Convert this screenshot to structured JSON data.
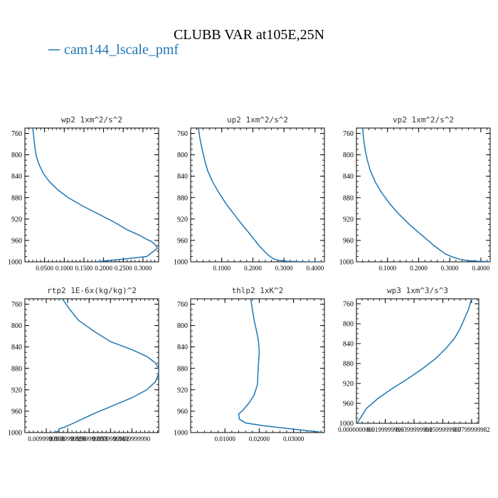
{
  "figure": {
    "title": "CLUBB VAR at105E,25N",
    "legend_label": "cam144_lscale_pmf",
    "line_color": "#1f77b4"
  },
  "chart_data": [
    {
      "type": "line",
      "title": "wp2  1xm^2/s^2",
      "xlim": [
        0.0,
        0.34
      ],
      "ylim": [
        1000,
        750
      ],
      "yticks": [
        760,
        800,
        840,
        880,
        920,
        960,
        1000
      ],
      "xticks": [
        0.05,
        0.1,
        0.15,
        0.2,
        0.25,
        0.3
      ],
      "xtick_labels": [
        "0.0500",
        "0.1000",
        "0.1500",
        "0.2000",
        "0.2500",
        "0.3000"
      ],
      "series": [
        {
          "x": [
            0.02,
            0.023,
            0.026,
            0.03,
            0.037,
            0.047,
            0.062,
            0.083,
            0.11,
            0.145,
            0.185,
            0.225,
            0.26,
            0.29,
            0.31,
            0.322,
            0.328,
            0.334,
            0.336,
            0.31,
            0.25,
            0.18
          ],
          "y": [
            750,
            770,
            790,
            805,
            820,
            835,
            850,
            865,
            880,
            895,
            910,
            925,
            940,
            950,
            958,
            962,
            966,
            970,
            975,
            990,
            995,
            1000
          ]
        }
      ]
    },
    {
      "type": "line",
      "title": "up2  1xm^2/s^2",
      "xlim": [
        0.0,
        0.43
      ],
      "ylim": [
        1000,
        750
      ],
      "yticks": [
        760,
        800,
        840,
        880,
        920,
        960,
        1000
      ],
      "xticks": [
        0.1,
        0.2,
        0.3,
        0.4
      ],
      "xtick_labels": [
        "0.1000",
        "0.2000",
        "0.3000",
        "0.4000"
      ],
      "series": [
        {
          "x": [
            0.025,
            0.03,
            0.037,
            0.045,
            0.055,
            0.07,
            0.09,
            0.112,
            0.138,
            0.165,
            0.193,
            0.22,
            0.24,
            0.255,
            0.268,
            0.28,
            0.31,
            0.37,
            0.43
          ],
          "y": [
            750,
            770,
            790,
            810,
            830,
            850,
            870,
            890,
            910,
            930,
            950,
            970,
            982,
            990,
            995,
            997,
            999,
            1000,
            1000
          ]
        }
      ]
    },
    {
      "type": "line",
      "title": "vp2  1xm^2/s^2",
      "xlim": [
        0.0,
        0.43
      ],
      "ylim": [
        1000,
        750
      ],
      "yticks": [
        760,
        800,
        840,
        880,
        920,
        960,
        1000
      ],
      "xticks": [
        0.1,
        0.2,
        0.3,
        0.4
      ],
      "xtick_labels": [
        "0.1000",
        "0.2000",
        "0.3000",
        "0.4000"
      ],
      "series": [
        {
          "x": [
            0.02,
            0.023,
            0.028,
            0.035,
            0.045,
            0.06,
            0.08,
            0.105,
            0.135,
            0.17,
            0.21,
            0.25,
            0.285,
            0.305,
            0.33,
            0.36,
            0.43
          ],
          "y": [
            750,
            770,
            790,
            810,
            830,
            850,
            870,
            890,
            910,
            930,
            950,
            970,
            985,
            990,
            995,
            998,
            1000
          ]
        }
      ]
    },
    {
      "type": "line",
      "title": "rtp2  1E-6x(kg/kg)^2",
      "xlim": [
        0.0,
        0.0625
      ],
      "ylim": [
        1000,
        750
      ],
      "yticks": [
        760,
        800,
        840,
        880,
        920,
        960,
        1000
      ],
      "xticks": [
        0.01,
        0.02,
        0.03,
        0.04,
        0.05
      ],
      "xtick_labels": [
        "0.0099999998",
        "0.0199999996",
        "0.0299999993",
        "0.0399999991",
        "0.0499999990"
      ],
      "series": [
        {
          "x": [
            0.0175,
            0.021,
            0.025,
            0.032,
            0.04,
            0.05,
            0.057,
            0.061,
            0.0625,
            0.0625,
            0.061,
            0.057,
            0.05,
            0.041,
            0.032,
            0.024,
            0.0185,
            0.016,
            0.0158,
            0.014
          ],
          "y": [
            750,
            770,
            790,
            810,
            830,
            845,
            858,
            870,
            880,
            890,
            905,
            920,
            935,
            950,
            965,
            980,
            990,
            993,
            997,
            1000
          ]
        }
      ]
    },
    {
      "type": "line",
      "title": "thlp2  1xK^2",
      "xlim": [
        0.0,
        0.039
      ],
      "ylim": [
        1000,
        750
      ],
      "yticks": [
        760,
        800,
        840,
        880,
        920,
        960,
        1000
      ],
      "xticks": [
        0.01,
        0.02,
        0.03
      ],
      "xtick_labels": [
        "0.01000",
        "0.02000",
        "0.03000"
      ],
      "series": [
        {
          "x": [
            0.0175,
            0.018,
            0.0185,
            0.0192,
            0.0198,
            0.02,
            0.0198,
            0.0196,
            0.0195,
            0.0185,
            0.017,
            0.015,
            0.014,
            0.0142,
            0.016,
            0.021,
            0.029,
            0.039
          ],
          "y": [
            750,
            770,
            790,
            810,
            830,
            850,
            870,
            890,
            910,
            930,
            945,
            960,
            965,
            975,
            982,
            987,
            993,
            1000
          ]
        }
      ]
    },
    {
      "type": "line",
      "title": "wp3  1xm^3/s^3",
      "xlim": [
        0.0,
        0.085
      ],
      "ylim": [
        1000,
        750
      ],
      "yticks": [
        760,
        800,
        840,
        880,
        920,
        960,
        1000
      ],
      "xticks": [
        0.0,
        0.02,
        0.04,
        0.06,
        0.08
      ],
      "xtick_labels": [
        "0.0000000000",
        "0.0199999996",
        "0.0399999991",
        "0.0599999987",
        "0.0799999982"
      ],
      "series": [
        {
          "x": [
            0.08,
            0.078,
            0.075,
            0.072,
            0.068,
            0.062,
            0.055,
            0.046,
            0.036,
            0.025,
            0.015,
            0.007,
            0.0005
          ],
          "y": [
            750,
            770,
            790,
            810,
            830,
            850,
            870,
            890,
            910,
            930,
            950,
            970,
            1000
          ]
        }
      ]
    }
  ]
}
